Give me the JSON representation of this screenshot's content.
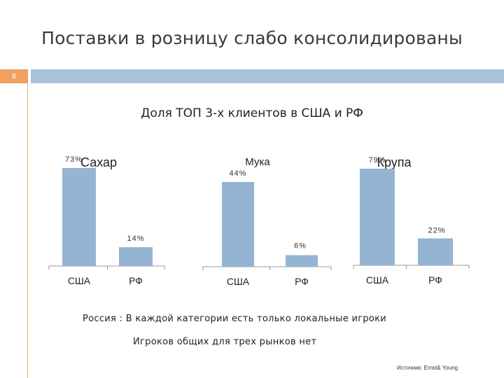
{
  "slide": {
    "title": "Поставки в розницу слабо консолидированы",
    "number": "8",
    "subtitle": "Доля ТОП 3-х клиентов в США и РФ",
    "note_line1": "Россия :  В каждой категории  есть только  локальные игроки",
    "note_line2": "Игроков общих для трех рынков нет",
    "source": "Источник: Ernst& Young"
  },
  "colors": {
    "bar": "#95b4d4",
    "accent_orange": "#f0a162",
    "band_blue": "#a9c2dc"
  },
  "chart_data": [
    {
      "type": "bar",
      "title": "Сахар",
      "categories": [
        "США",
        "РФ"
      ],
      "values": [
        73,
        14
      ],
      "data_labels": [
        "73%",
        "14%"
      ],
      "unit": "%",
      "ylim": [
        0,
        80
      ]
    },
    {
      "type": "bar",
      "title": "Мука",
      "categories": [
        "США",
        "РФ"
      ],
      "values": [
        44,
        6
      ],
      "data_labels": [
        "44%",
        "6%"
      ],
      "unit": "%",
      "ylim": [
        0,
        50
      ]
    },
    {
      "type": "bar",
      "title": "Крупа",
      "categories": [
        "США",
        "РФ"
      ],
      "values": [
        79,
        22
      ],
      "data_labels": [
        "79%",
        "22%"
      ],
      "unit": "%",
      "ylim": [
        0,
        100
      ]
    }
  ]
}
